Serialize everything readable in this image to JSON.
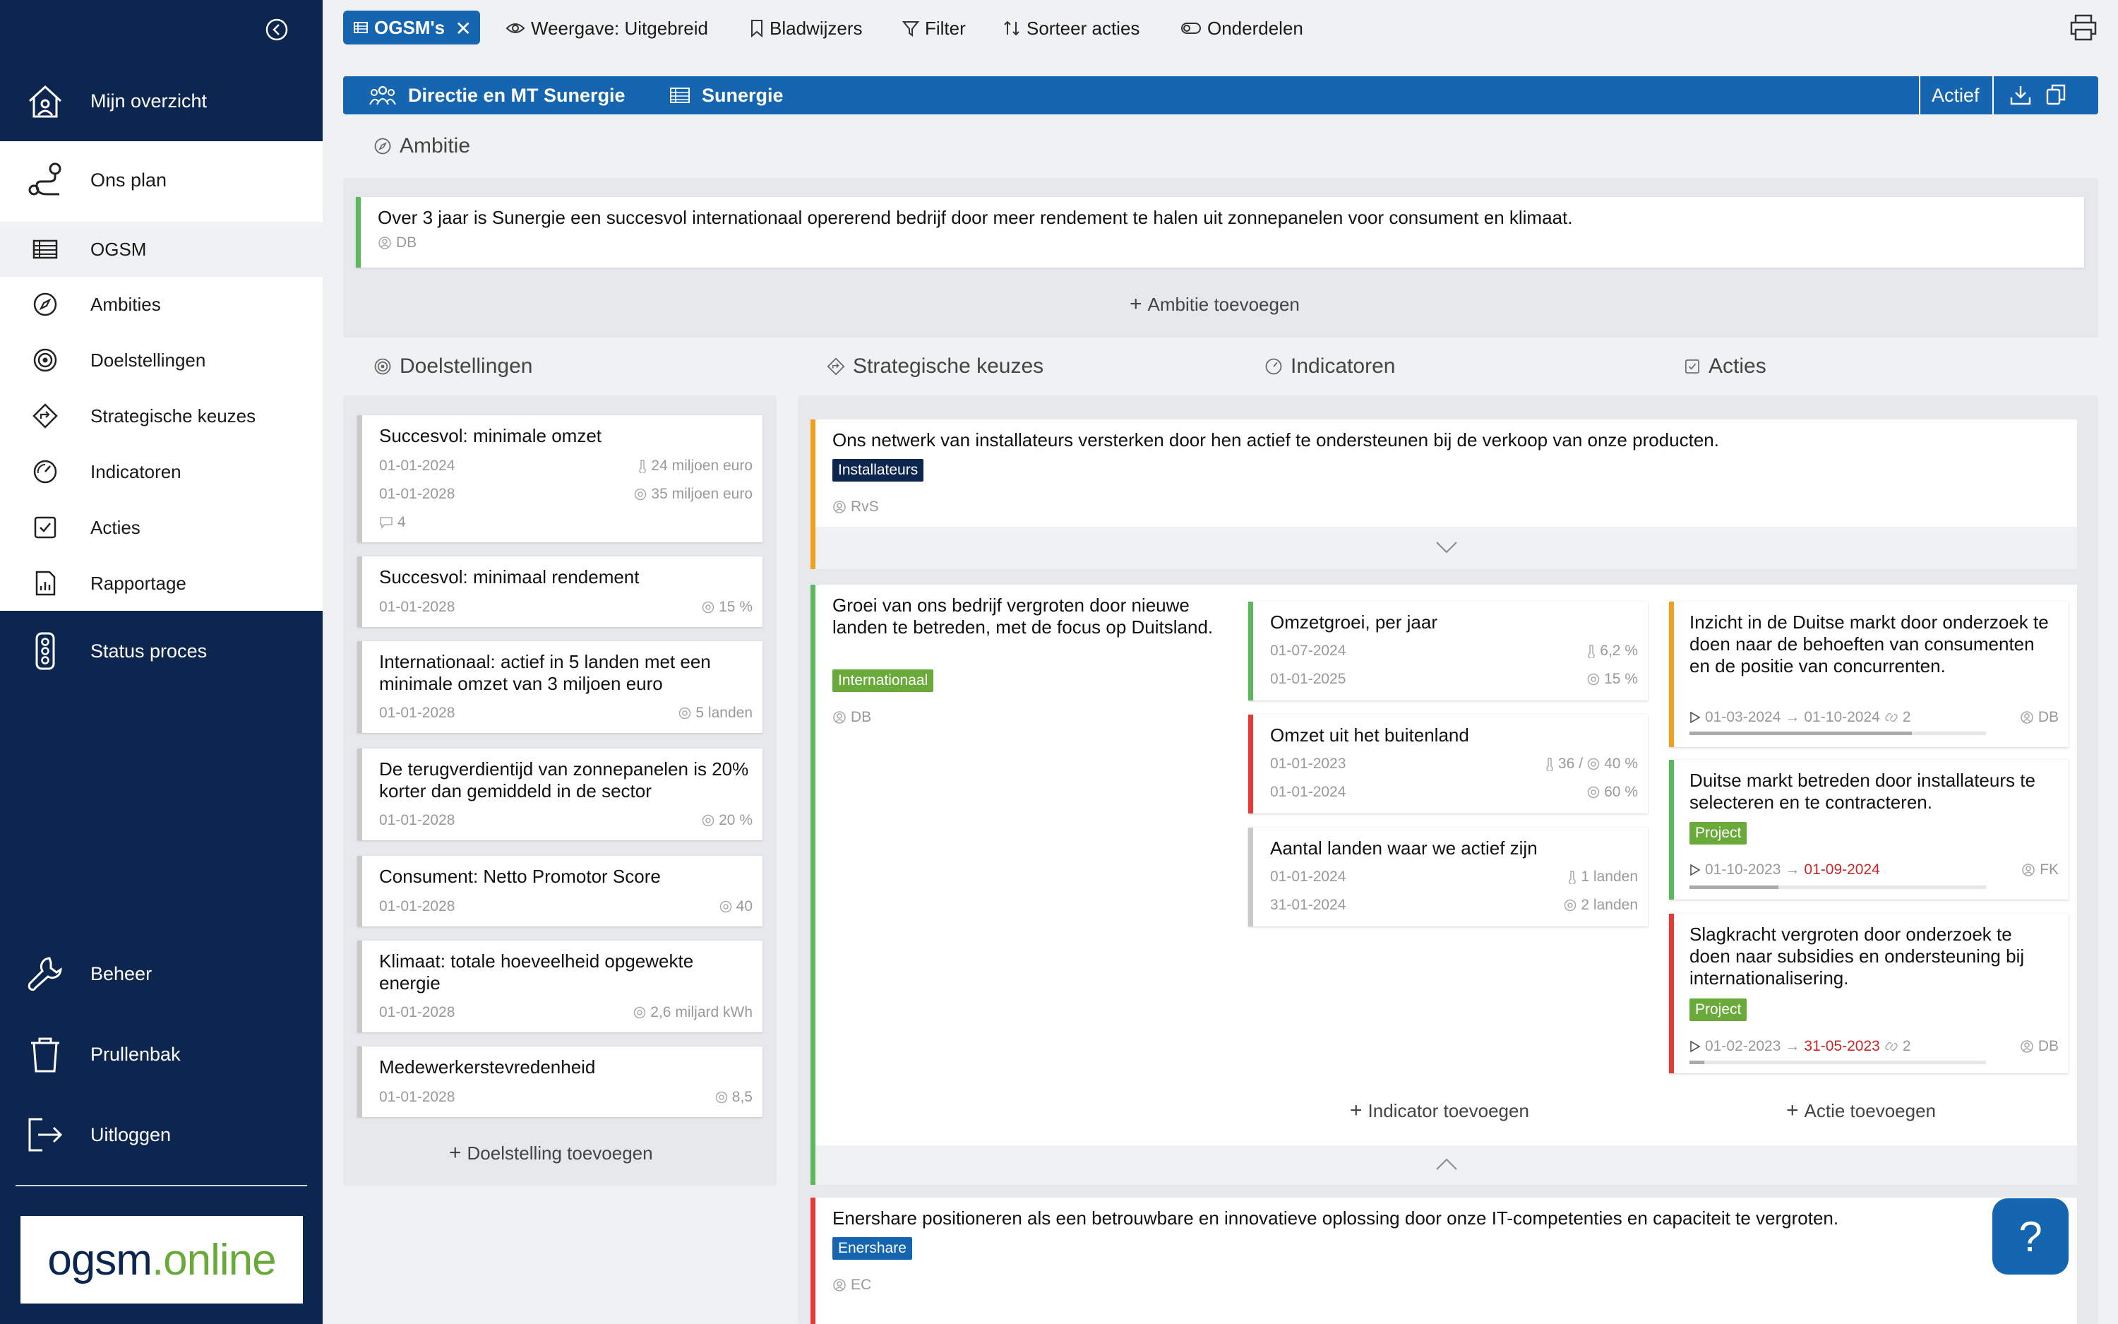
{
  "sidebar": {
    "top": [
      {
        "label": "Mijn overzicht",
        "icon": "home-icon"
      }
    ],
    "plan": {
      "label": "Ons plan",
      "icon": "route-icon"
    },
    "sub": [
      {
        "label": "OGSM",
        "icon": "grid-icon",
        "selected": true
      },
      {
        "label": "Ambities",
        "icon": "compass-icon"
      },
      {
        "label": "Doelstellingen",
        "icon": "target-icon"
      },
      {
        "label": "Strategische keuzes",
        "icon": "diamond-arrow-icon"
      },
      {
        "label": "Indicatoren",
        "icon": "gauge-icon"
      },
      {
        "label": "Acties",
        "icon": "checkbox-icon"
      },
      {
        "label": "Rapportage",
        "icon": "report-icon"
      }
    ],
    "status": {
      "label": "Status proces",
      "icon": "traffic-light-icon"
    },
    "bottom": [
      {
        "label": "Beheer",
        "icon": "wrench-icon"
      },
      {
        "label": "Prullenbak",
        "icon": "trash-icon"
      },
      {
        "label": "Uitloggen",
        "icon": "logout-icon"
      }
    ],
    "logo": {
      "part1": "ogsm",
      "part2": "online"
    }
  },
  "toolbar": {
    "chip": "OGSM's",
    "view": "Weergave: Uitgebreid",
    "bookmarks": "Bladwijzers",
    "filter": "Filter",
    "sort": "Sorteer acties",
    "parts": "Onderdelen"
  },
  "header": {
    "org": "Directie en MT Sunergie",
    "ogsm": "Sunergie",
    "status": "Actief"
  },
  "ambition": {
    "title": "Ambitie",
    "text": "Over 3 jaar is Sunergie een succesvol internationaal opererend bedrijf door meer rendement te halen uit zonnepanelen voor consument en klimaat.",
    "owner": "DB",
    "add": "Ambitie toevoegen"
  },
  "columns": {
    "goals": "Doelstellingen",
    "strategies": "Strategische keuzes",
    "indicators": "Indicatoren",
    "actions": "Acties"
  },
  "goals": [
    {
      "title": "Succesvol: minimale omzet",
      "rows": [
        [
          "01-01-2024",
          "24 miljoen euro"
        ],
        [
          "01-01-2028",
          "35 miljoen euro"
        ]
      ],
      "comments": "4"
    },
    {
      "title": "Succesvol: minimaal rendement",
      "rows": [
        [
          "01-01-2028",
          "15 %"
        ]
      ]
    },
    {
      "title": "Internationaal: actief in 5 landen met een minimale omzet van 3 miljoen euro",
      "rows": [
        [
          "01-01-2028",
          "5 landen"
        ]
      ]
    },
    {
      "title": "De terugverdientijd van zonnepanelen is 20% korter dan gemiddeld in de sector",
      "rows": [
        [
          "01-01-2028",
          "20 %"
        ]
      ]
    },
    {
      "title": "Consument: Netto Promotor Score",
      "rows": [
        [
          "01-01-2028",
          "40"
        ]
      ]
    },
    {
      "title": "Klimaat: totale hoeveelheid opgewekte energie",
      "rows": [
        [
          "01-01-2028",
          "2,6 miljard kWh"
        ]
      ]
    },
    {
      "title": "Medewerkerstevredenheid",
      "rows": [
        [
          "01-01-2028",
          "8,5"
        ]
      ]
    }
  ],
  "goals_add": "Doelstelling toevoegen",
  "strategies": {
    "s1": {
      "text": "Ons netwerk van installateurs versterken door hen actief te ondersteunen bij de verkoop van onze producten.",
      "tag": "Installateurs",
      "owner": "RvS"
    },
    "s2": {
      "text": "Groei van ons bedrijf vergroten door nieuwe landen te betreden, met de focus op Duitsland.",
      "tag": "Internationaal",
      "owner": "DB"
    },
    "s3": {
      "text": "Enershare positioneren als een betrouwbare en innovatieve oplossing door onze IT-competenties en capaciteit te vergroten.",
      "tag": "Enershare",
      "owner": "EC"
    }
  },
  "indicators": [
    {
      "title": "Omzetgroei, per jaar",
      "d1": "01-07-2024",
      "v1": "6,2 %",
      "d2": "01-01-2025",
      "v2": "15 %"
    },
    {
      "title": "Omzet uit het buitenland",
      "d1": "01-01-2023",
      "v1a": "36",
      "v1": "40 %",
      "d2": "01-01-2024",
      "v2": "60 %"
    },
    {
      "title": "Aantal landen waar we actief zijn",
      "d1": "01-01-2024",
      "v1": "1 landen",
      "d2": "31-01-2024",
      "v2": "2 landen"
    }
  ],
  "indicator_add": "Indicator toevoegen",
  "actions": [
    {
      "title": "Inzicht in de Duitse markt door onderzoek te doen naar de behoeften van consumenten en de positie van concurrenten.",
      "start": "01-03-2024",
      "end": "01-10-2024",
      "links": "2",
      "owner": "DB",
      "progress": 0.75
    },
    {
      "title": "Duitse markt betreden door installateurs te selecteren en te contracteren.",
      "tag": "Project",
      "start": "01-10-2023",
      "end": "01-09-2024",
      "owner": "FK",
      "progress": 0.3
    },
    {
      "title": "Slagkracht vergroten door onderzoek te doen naar subsidies en ondersteuning bij internationalisering.",
      "tag": "Project",
      "start": "01-02-2023",
      "end": "31-05-2023",
      "links": "2",
      "owner": "DB",
      "progress": 0.05
    }
  ],
  "action_add": "Actie toevoegen",
  "help": "?",
  "colors": {
    "navy": "#0c2650",
    "blue": "#1565b0",
    "green": "#5cb85c",
    "orange": "#f0a020",
    "red": "#e53935",
    "tag_green": "#6aaa3a",
    "tag_dark": "#0c2650",
    "tag_blue": "#1565b0"
  }
}
